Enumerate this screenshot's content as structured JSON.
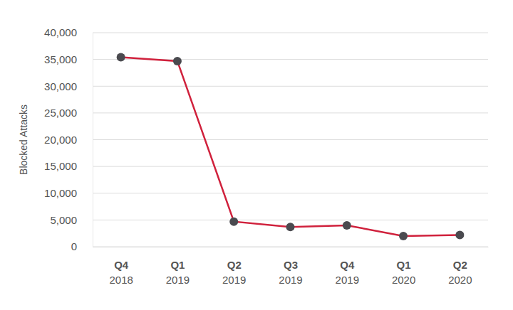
{
  "chart_data": {
    "type": "line",
    "y_label": "Blocked Attacks",
    "categories": [
      "Q4 2018",
      "Q1 2019",
      "Q2 2019",
      "Q3 2019",
      "Q4 2019",
      "Q1 2020",
      "Q2 2020"
    ],
    "values": [
      35400,
      34700,
      4700,
      3700,
      4000,
      2000,
      2200
    ],
    "color": "#d0213c",
    "marker": "circle",
    "ylim": [
      0,
      40000
    ],
    "yticks": [
      0,
      {
        "value": 5000,
        "label": "5,000"
      },
      {
        "value": 10000,
        "label": "10,000"
      },
      {
        "value": 15000,
        "label": "15,000"
      },
      {
        "value": 20000,
        "label": "20,000"
      },
      {
        "value": 25000,
        "label": "25,000"
      },
      {
        "value": 30000,
        "label": "30,000"
      },
      {
        "value": 35000,
        "label": "35,000"
      },
      {
        "value": 40000,
        "label": "40,000"
      }
    ],
    "grid": true
  }
}
